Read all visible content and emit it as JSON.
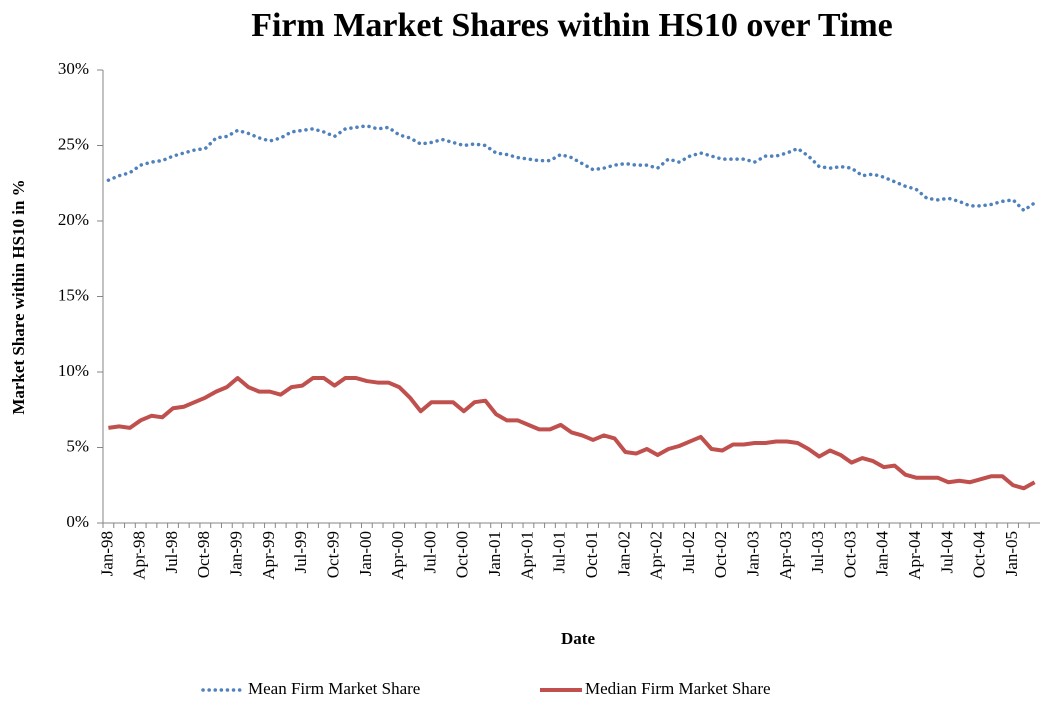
{
  "chart_data": {
    "type": "line",
    "title": "Firm Market Shares within HS10 over Time",
    "x_label": "Date",
    "y_label": "Market Share within HS10 in %",
    "categories": [
      "Jan-98",
      null,
      null,
      "Apr-98",
      null,
      null,
      "Jul-98",
      null,
      null,
      "Oct-98",
      null,
      null,
      "Jan-99",
      null,
      null,
      "Apr-99",
      null,
      null,
      "Jul-99",
      null,
      null,
      "Oct-99",
      null,
      null,
      "Jan-00",
      null,
      null,
      "Apr-00",
      null,
      null,
      "Jul-00",
      null,
      null,
      "Oct-00",
      null,
      null,
      "Jan-01",
      null,
      null,
      "Apr-01",
      null,
      null,
      "Jul-01",
      null,
      null,
      "Oct-01",
      null,
      null,
      "Jan-02",
      null,
      null,
      "Apr-02",
      null,
      null,
      "Jul-02",
      null,
      null,
      "Oct-02",
      null,
      null,
      "Jan-03",
      null,
      null,
      "Apr-03",
      null,
      null,
      "Jul-03",
      null,
      null,
      "Oct-03",
      null,
      null,
      "Jan-04",
      null,
      null,
      "Apr-04",
      null,
      null,
      "Jul-04",
      null,
      null,
      "Oct-04",
      null,
      null,
      "Jan-05",
      null,
      null
    ],
    "series": [
      {
        "name": "Mean Firm Market Share",
        "color": "#4f81bd",
        "style": "dotted",
        "values": [
          22.7,
          23.0,
          23.2,
          23.7,
          23.9,
          24.0,
          24.3,
          24.5,
          24.7,
          24.8,
          25.5,
          25.6,
          26.0,
          25.8,
          25.5,
          25.3,
          25.5,
          25.9,
          26.0,
          26.1,
          25.9,
          25.6,
          26.1,
          26.2,
          26.3,
          26.1,
          26.2,
          25.7,
          25.5,
          25.1,
          25.2,
          25.4,
          25.2,
          25.0,
          25.1,
          25.0,
          24.5,
          24.4,
          24.2,
          24.1,
          24.0,
          24.0,
          24.4,
          24.2,
          23.8,
          23.4,
          23.5,
          23.7,
          23.8,
          23.7,
          23.7,
          23.5,
          24.1,
          23.9,
          24.3,
          24.5,
          24.3,
          24.1,
          24.1,
          24.1,
          23.9,
          24.3,
          24.3,
          24.5,
          24.8,
          24.3,
          23.6,
          23.5,
          23.6,
          23.5,
          23.0,
          23.1,
          22.9,
          22.6,
          22.3,
          22.1,
          21.5,
          21.4,
          21.5,
          21.3,
          21.0,
          21.0,
          21.1,
          21.3,
          21.4,
          20.7,
          21.2
        ]
      },
      {
        "name": "Median Firm Market Share",
        "color": "#c0504d",
        "style": "solid",
        "values": [
          6.3,
          6.4,
          6.3,
          6.8,
          7.1,
          7.0,
          7.6,
          7.7,
          8.0,
          8.3,
          8.7,
          9.0,
          9.6,
          9.0,
          8.7,
          8.7,
          8.5,
          9.0,
          9.1,
          9.6,
          9.6,
          9.1,
          9.6,
          9.6,
          9.4,
          9.3,
          9.3,
          9.0,
          8.3,
          7.4,
          8.0,
          8.0,
          8.0,
          7.4,
          8.0,
          8.1,
          7.2,
          6.8,
          6.8,
          6.5,
          6.2,
          6.2,
          6.5,
          6.0,
          5.8,
          5.5,
          5.8,
          5.6,
          4.7,
          4.6,
          4.9,
          4.5,
          4.9,
          5.1,
          5.4,
          5.7,
          4.9,
          4.8,
          5.2,
          5.2,
          5.3,
          5.3,
          5.4,
          5.4,
          5.3,
          4.9,
          4.4,
          4.8,
          4.5,
          4.0,
          4.3,
          4.1,
          3.7,
          3.8,
          3.2,
          3.0,
          3.0,
          3.0,
          2.7,
          2.8,
          2.7,
          2.9,
          3.1,
          3.1,
          2.5,
          2.3,
          2.7
        ]
      }
    ],
    "ylim": [
      0,
      30
    ],
    "yticks": [
      {
        "value": 0,
        "label": "0%"
      },
      {
        "value": 5,
        "label": "5%"
      },
      {
        "value": 10,
        "label": "10%"
      },
      {
        "value": 15,
        "label": "15%"
      },
      {
        "value": 20,
        "label": "20%"
      },
      {
        "value": 25,
        "label": "25%"
      },
      {
        "value": 30,
        "label": "30%"
      }
    ],
    "grid": false,
    "legend": "bottom"
  }
}
